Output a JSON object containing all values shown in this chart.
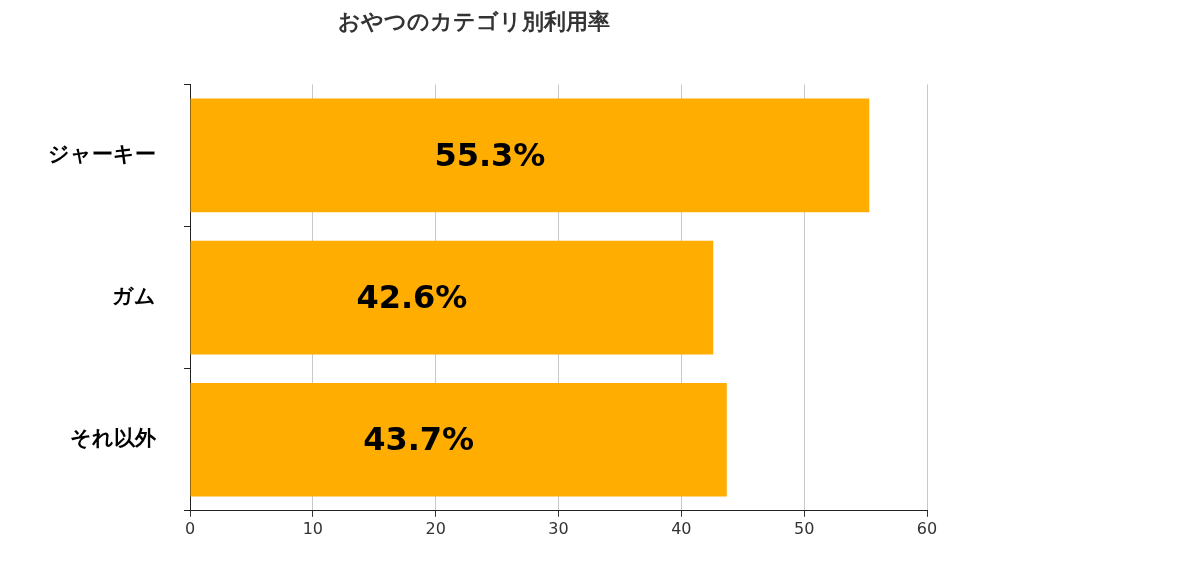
{
  "chart_data": {
    "type": "bar",
    "orientation": "horizontal",
    "title": "おやつのカテゴリ別利用率",
    "categories": [
      "ジャーキー",
      "ガム",
      "それ以外"
    ],
    "values": [
      55.3,
      42.6,
      43.7
    ],
    "value_labels": [
      "55.3%",
      "42.6%",
      "43.7%"
    ],
    "color": "#ffad00",
    "xlim": [
      0,
      60
    ],
    "xticks": [
      0,
      10,
      20,
      30,
      40,
      50,
      60
    ],
    "grid": "x",
    "legend": false
  }
}
